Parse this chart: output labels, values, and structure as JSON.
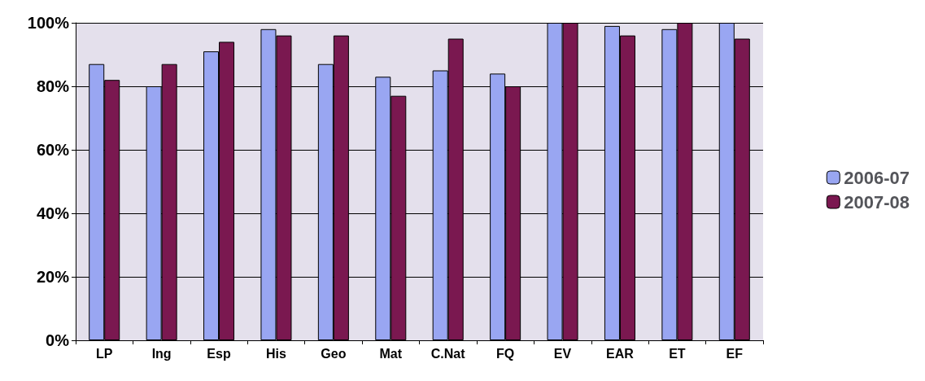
{
  "chart_data": {
    "type": "bar",
    "categories": [
      "LP",
      "Ing",
      "Esp",
      "His",
      "Geo",
      "Mat",
      "C.Nat",
      "FQ",
      "EV",
      "EAR",
      "ET",
      "EF"
    ],
    "series": [
      {
        "name": "2006-07",
        "color": "#99a6f2",
        "values": [
          87,
          80,
          91,
          98,
          87,
          83,
          85,
          84,
          100,
          99,
          98,
          100
        ]
      },
      {
        "name": "2007-08",
        "color": "#7a1850",
        "values": [
          82,
          87,
          94,
          96,
          96,
          77,
          95,
          80,
          100,
          96,
          100,
          95
        ]
      }
    ],
    "ylim": [
      0,
      100
    ],
    "yticks": [
      {
        "value": 0,
        "label": "0%"
      },
      {
        "value": 20,
        "label": "20%"
      },
      {
        "value": 40,
        "label": "40%"
      },
      {
        "value": 60,
        "label": "60%"
      },
      {
        "value": 80,
        "label": "80%"
      },
      {
        "value": 100,
        "label": "100%"
      }
    ],
    "grid": "y",
    "legend": "right"
  }
}
